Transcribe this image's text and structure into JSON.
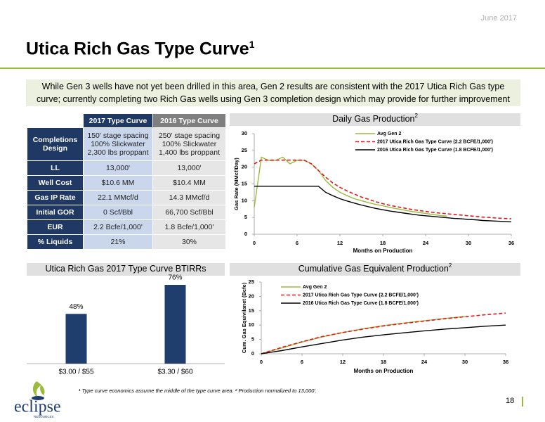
{
  "header": {
    "date": "June 2017",
    "title": "Utica Rich Gas Type Curve",
    "title_note": "1",
    "banner": "While Gen 3 wells have not yet been drilled in this area, Gen 2 results are consistent with the 2017 Utica Rich Gas type\ncurve; currently completing two Rich Gas wells using Gen 3 completion design which may provide for further improvement"
  },
  "table": {
    "columns": [
      "2017 Type Curve",
      "2016 Type Curve"
    ],
    "rows": [
      [
        "Completions Design",
        "150' stage spacing\n100% Slickwater\n2,300 lbs proppant",
        "250' stage spacing\n100% Slickwater\n1,400 lbs proppant"
      ],
      [
        "LL",
        "13,000'",
        "13,000'"
      ],
      [
        "Well Cost",
        "$10.6 MM",
        "$10.4 MM"
      ],
      [
        "Gas IP Rate",
        "22.1 MMcf/d",
        "14.3 MMcf/d"
      ],
      [
        "Initial GOR",
        "0 Scf/Bbl",
        "66,700 Scf/Bbl"
      ],
      [
        "EUR",
        "2.2 Bcfe/1,000'",
        "1.8 Bcfe/1,000'"
      ],
      [
        "% Liquids",
        "21%",
        "30%"
      ]
    ]
  },
  "chart_data": [
    {
      "type": "line",
      "title": "Daily Gas Production",
      "title_note": "2",
      "x_label": "Months on Production",
      "y_label": "Gas Rate (MMcf/Day)",
      "x": [
        0,
        1,
        2,
        3,
        4,
        5,
        6,
        7,
        8,
        9,
        10,
        11,
        12,
        13,
        14,
        15,
        16,
        17,
        18,
        19,
        20,
        21,
        22,
        23,
        24,
        25,
        26,
        27,
        28,
        29,
        30,
        31,
        32,
        33,
        34,
        35,
        36
      ],
      "xlim": [
        0,
        36
      ],
      "xticks": [
        0,
        6,
        12,
        18,
        24,
        30,
        36
      ],
      "ylim": [
        0,
        30
      ],
      "yticks": [
        0,
        5,
        10,
        15,
        20,
        25,
        30
      ],
      "series": [
        {
          "name": "Avg Gen 2",
          "color": "#9bbb3b",
          "dashed": false,
          "values": [
            8,
            23,
            22,
            22,
            23,
            21,
            22,
            22,
            21,
            19,
            16,
            14,
            12.5,
            11.5,
            10.6,
            10,
            9.4,
            8.9,
            8.5,
            8.0,
            7.6,
            7.2,
            6.8,
            6.5,
            6.2,
            5.9,
            5.6,
            5.4,
            null,
            null,
            null,
            null,
            null,
            null,
            null,
            null,
            null
          ]
        },
        {
          "name": "2017 Utica Rich Gas Type Curve (2.2 BCFE/1,000')",
          "color": "#e31a1c",
          "dashed": true,
          "values": [
            21,
            22.1,
            22.1,
            22.1,
            22.1,
            22.1,
            22.1,
            22.1,
            21,
            19,
            17,
            15.3,
            14,
            12.9,
            12,
            11.1,
            10.4,
            9.7,
            9.1,
            8.6,
            8.2,
            7.8,
            7.4,
            7.1,
            6.8,
            6.5,
            6.3,
            6.1,
            5.9,
            5.7,
            5.5,
            5.3,
            5.1,
            5.0,
            4.8,
            4.7,
            4.6
          ]
        },
        {
          "name": "2016 Utica Rich Gas Type Curve (1.8 BCFE/1,000')",
          "color": "#000000",
          "dashed": false,
          "values": [
            14.3,
            14.3,
            14.3,
            14.3,
            14.3,
            14.3,
            14.3,
            14.3,
            14.3,
            14.3,
            12.5,
            11.5,
            10.6,
            9.9,
            9.3,
            8.7,
            8.2,
            7.7,
            7.3,
            6.9,
            6.6,
            6.3,
            6.0,
            5.7,
            5.5,
            5.3,
            5.1,
            4.9,
            4.7,
            4.6,
            4.4,
            4.3,
            4.1,
            4.0,
            3.9,
            3.8,
            3.7
          ]
        }
      ]
    },
    {
      "type": "bar",
      "title": "Utica Rich Gas 2017 Type Curve BTIRRs",
      "categories": [
        "$3.00 / $55",
        "$3.30 / $60"
      ],
      "values": [
        48,
        76
      ],
      "value_labels": [
        "48%",
        "76%"
      ],
      "color": "#1f3d6d"
    },
    {
      "type": "line",
      "title": "Cumulative Gas Equivalent Production",
      "title_note": "2",
      "x_label": "Months on Production",
      "y_label": "Cum. Gas Equivilanet (Bcfe)",
      "x": [
        0,
        3,
        6,
        9,
        12,
        15,
        18,
        21,
        24,
        27,
        30,
        33,
        36
      ],
      "xlim": [
        0,
        36
      ],
      "xticks": [
        0,
        6,
        12,
        18,
        24,
        30,
        36
      ],
      "ylim": [
        0,
        25
      ],
      "yticks": [
        0,
        5,
        10,
        15,
        20,
        25
      ],
      "series": [
        {
          "name": "Avg Gen 2",
          "color": "#9bbb3b",
          "dashed": false,
          "values": [
            0,
            2.0,
            4.1,
            5.9,
            7.4,
            8.7,
            9.8,
            10.7,
            11.5,
            12.3,
            13.0,
            null,
            null
          ]
        },
        {
          "name": "2017 Utica Rich Gas Type Curve (2.2 BCFE/1,000')",
          "color": "#e31a1c",
          "dashed": true,
          "values": [
            0,
            2.2,
            4.2,
            6.0,
            7.4,
            8.6,
            9.7,
            10.6,
            11.4,
            12.2,
            12.9,
            13.6,
            14.2
          ]
        },
        {
          "name": "2016 Utica Rich Gas Type Curve (1.8 BCFE/1,000')",
          "color": "#000000",
          "dashed": false,
          "values": [
            0,
            1.1,
            2.4,
            3.6,
            4.8,
            5.8,
            6.6,
            7.3,
            8.0,
            8.6,
            9.1,
            9.6,
            10.0
          ]
        }
      ]
    }
  ],
  "footnote": "¹ Type curve economics assume the middle of the type curve area. ² Production normalized to 13,000'.",
  "page_number": "18",
  "logo": {
    "name": "eclipse",
    "tagline": "RESOURCES"
  }
}
